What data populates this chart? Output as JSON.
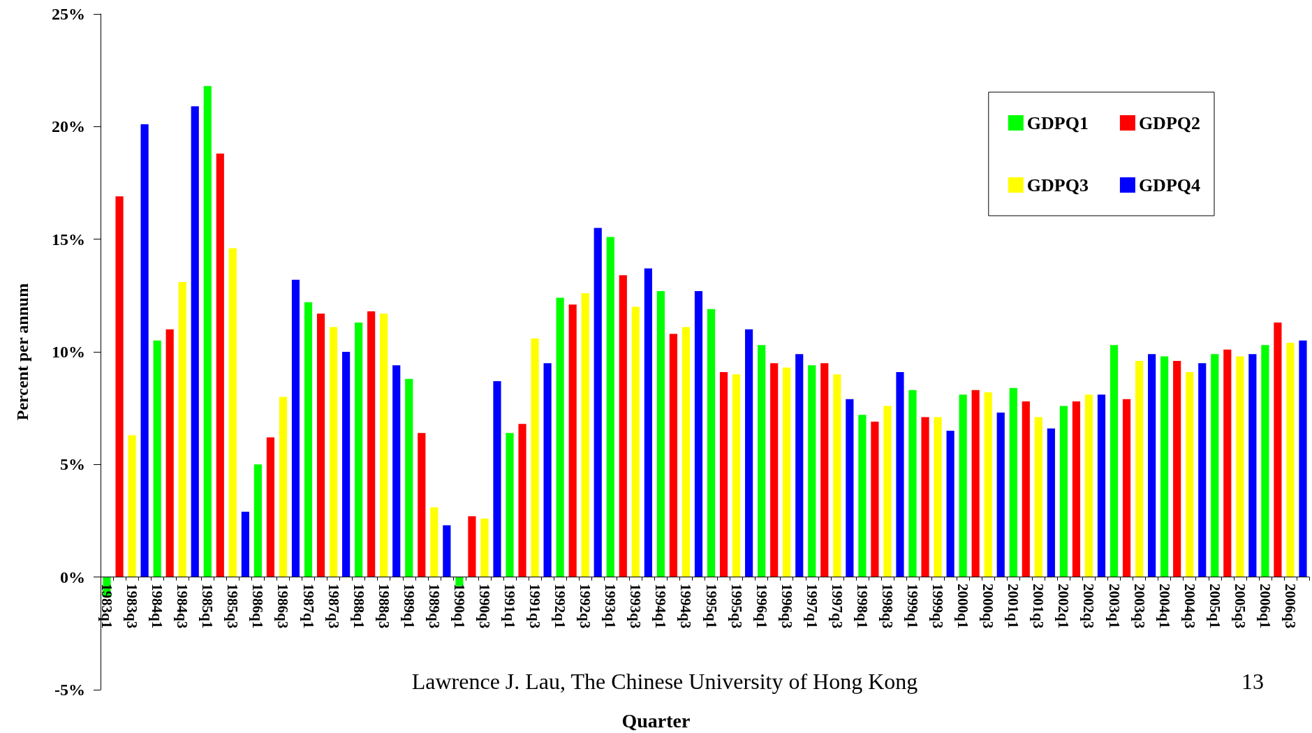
{
  "chart_data": {
    "type": "bar",
    "stacked": true,
    "xlabel": "Quarter",
    "ylabel": "Percent per annum",
    "annotations": [
      "Lawrence J. Lau, The Chinese University of Hong Kong",
      "13"
    ],
    "categories": [
      "1983q1",
      null,
      "1983q3",
      null,
      "1984q1",
      null,
      "1984q3",
      null,
      "1985q1",
      null,
      "1985q3",
      null,
      "1986q1",
      null,
      "1986q3",
      null,
      "1987q1",
      null,
      "1987q3",
      null,
      "1988q1",
      null,
      "1988q3",
      null,
      "1989q1",
      null,
      "1989q3",
      null,
      "1990q1",
      null,
      "1990q3",
      null,
      "1991q1",
      null,
      "1991q3",
      null,
      "1992q1",
      null,
      "1992q3",
      null,
      "1993q1",
      null,
      "1993q3",
      null,
      "1994q1",
      null,
      "1994q3",
      null,
      "1995q1",
      null,
      "1995q3",
      null,
      "1996q1",
      null,
      "1996q3",
      null,
      "1997q1",
      null,
      "1997q3",
      null,
      "1998q1",
      null,
      "1998q3",
      null,
      "1999q1",
      null,
      "1999q3",
      null,
      "2000q1",
      null,
      "2000q3",
      null,
      "2001q1",
      null,
      "2001q3",
      null,
      "2002q1",
      null,
      "2002q3",
      null,
      "2003q1",
      null,
      "2003q3",
      null,
      "2004q1",
      null,
      "2004q3",
      null,
      "2005q1",
      null,
      "2005q3",
      null,
      "2006q1",
      null,
      "2006q3",
      null
    ],
    "series": [
      {
        "name": "GDPQ1",
        "color": "#00ff00",
        "values": [
          -0.9,
          null,
          null,
          null,
          10.5,
          null,
          null,
          null,
          21.8,
          null,
          null,
          null,
          5.0,
          null,
          null,
          null,
          12.2,
          null,
          null,
          null,
          11.3,
          null,
          null,
          null,
          8.8,
          null,
          null,
          null,
          -0.4,
          null,
          null,
          null,
          6.4,
          null,
          null,
          null,
          12.4,
          null,
          null,
          null,
          15.1,
          null,
          null,
          null,
          12.7,
          null,
          null,
          null,
          11.9,
          null,
          null,
          null,
          10.3,
          null,
          null,
          null,
          9.4,
          null,
          null,
          null,
          7.2,
          null,
          null,
          null,
          8.3,
          null,
          null,
          null,
          8.1,
          null,
          null,
          null,
          8.4,
          null,
          null,
          null,
          7.6,
          null,
          null,
          null,
          10.3,
          null,
          null,
          null,
          9.8,
          null,
          null,
          null,
          9.9,
          null,
          null,
          null,
          10.3,
          null,
          null,
          null
        ]
      },
      {
        "name": "GDPQ2",
        "color": "#ff0000",
        "values": [
          null,
          16.9,
          null,
          null,
          null,
          11.0,
          null,
          null,
          null,
          18.8,
          null,
          null,
          null,
          6.2,
          null,
          null,
          null,
          11.7,
          null,
          null,
          null,
          11.8,
          null,
          null,
          null,
          6.4,
          null,
          null,
          null,
          2.7,
          null,
          null,
          null,
          6.8,
          null,
          null,
          null,
          12.1,
          null,
          null,
          null,
          13.4,
          null,
          null,
          null,
          10.8,
          null,
          null,
          null,
          9.1,
          null,
          null,
          null,
          9.5,
          null,
          null,
          null,
          9.5,
          null,
          null,
          null,
          6.9,
          null,
          null,
          null,
          7.1,
          null,
          null,
          null,
          8.3,
          null,
          null,
          null,
          7.8,
          null,
          null,
          null,
          7.8,
          null,
          null,
          null,
          7.9,
          null,
          null,
          null,
          9.6,
          null,
          null,
          null,
          10.1,
          null,
          null,
          null,
          11.3,
          null,
          null
        ]
      },
      {
        "name": "GDPQ3",
        "color": "#ffff00",
        "values": [
          null,
          null,
          6.3,
          null,
          null,
          null,
          13.1,
          null,
          null,
          null,
          14.6,
          null,
          null,
          null,
          8.0,
          null,
          null,
          null,
          11.1,
          null,
          null,
          null,
          11.7,
          null,
          null,
          null,
          3.1,
          null,
          null,
          null,
          2.6,
          null,
          null,
          null,
          10.6,
          null,
          null,
          null,
          12.6,
          null,
          null,
          null,
          12.0,
          null,
          null,
          null,
          11.1,
          null,
          null,
          null,
          9.0,
          null,
          null,
          null,
          9.3,
          null,
          null,
          null,
          9.0,
          null,
          null,
          null,
          7.6,
          null,
          null,
          null,
          7.1,
          null,
          null,
          null,
          8.2,
          null,
          null,
          null,
          7.1,
          null,
          null,
          null,
          8.1,
          null,
          null,
          null,
          9.6,
          null,
          null,
          null,
          9.1,
          null,
          null,
          null,
          9.8,
          null,
          null,
          null,
          10.4,
          null
        ]
      },
      {
        "name": "GDPQ4",
        "color": "#0000ff",
        "values": [
          null,
          null,
          null,
          20.1,
          null,
          null,
          null,
          20.9,
          null,
          null,
          null,
          2.9,
          null,
          null,
          null,
          13.2,
          null,
          null,
          null,
          10.0,
          null,
          null,
          null,
          9.4,
          null,
          null,
          null,
          2.3,
          null,
          null,
          null,
          8.7,
          null,
          null,
          null,
          9.5,
          null,
          null,
          null,
          15.5,
          null,
          null,
          null,
          13.7,
          null,
          null,
          null,
          12.7,
          null,
          null,
          null,
          11.0,
          null,
          null,
          null,
          9.9,
          null,
          null,
          null,
          7.9,
          null,
          null,
          null,
          9.1,
          null,
          null,
          null,
          6.5,
          null,
          null,
          null,
          7.3,
          null,
          null,
          null,
          6.6,
          null,
          null,
          null,
          8.1,
          null,
          null,
          null,
          9.9,
          null,
          null,
          null,
          9.5,
          null,
          null,
          null,
          9.9,
          null,
          null,
          null,
          10.5
        ]
      }
    ],
    "ylim": [
      -5,
      25
    ],
    "yticks": [
      {
        "value": -5,
        "label": "-5%"
      },
      {
        "value": 0,
        "label": "0%"
      },
      {
        "value": 5,
        "label": "5%"
      },
      {
        "value": 10,
        "label": "10%"
      },
      {
        "value": 15,
        "label": "15%"
      },
      {
        "value": 20,
        "label": "20%"
      },
      {
        "value": 25,
        "label": "25%"
      }
    ],
    "legend": "top right"
  }
}
